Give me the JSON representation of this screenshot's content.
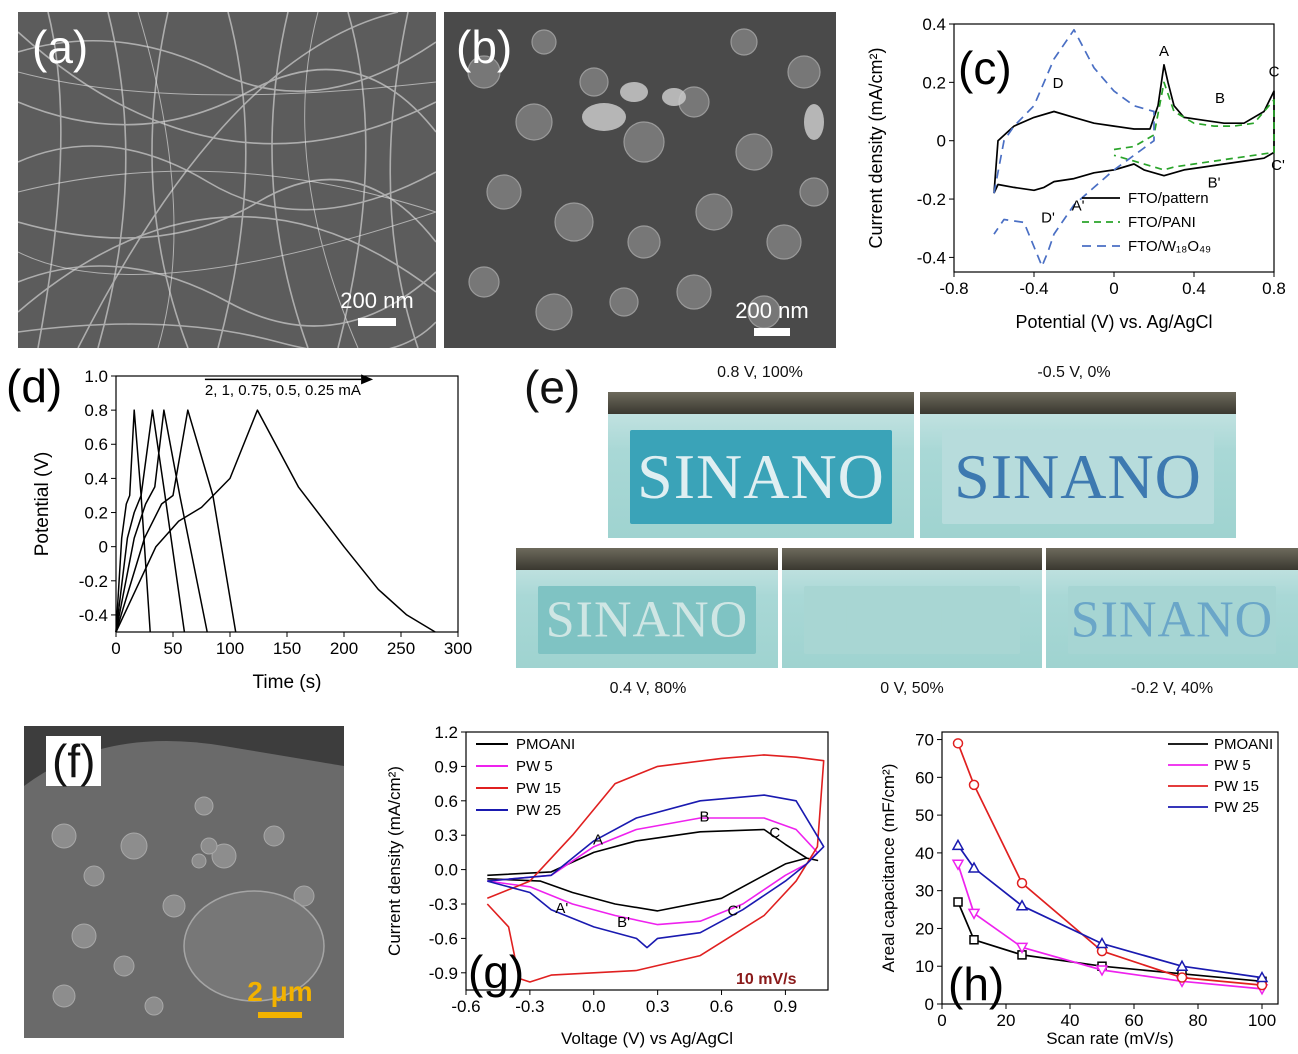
{
  "panels": {
    "a": {
      "label": "(a)",
      "scale": "200 nm"
    },
    "b": {
      "label": "(b)",
      "scale": "200 nm"
    },
    "c": {
      "label": "(c)"
    },
    "d": {
      "label": "(d)"
    },
    "e": {
      "label": "(e)"
    },
    "f": {
      "label": "(f)",
      "scale": "2 μm"
    },
    "g": {
      "label": "(g)"
    },
    "h": {
      "label": "(h)"
    }
  },
  "photos": {
    "word": "SINANO",
    "p1": {
      "caption": "0.8 V, 100%",
      "film": "#3aa3b8",
      "text": "#dfeff2"
    },
    "p2": {
      "caption": "-0.5 V, 0%",
      "film": "#b7dcdc",
      "text": "#3d79b0"
    },
    "p3": {
      "caption": "0.4 V, 80%",
      "film": "#7fc3c3",
      "text": "#cfe6e4"
    },
    "p4": {
      "caption": "0 V, 50%",
      "film": "#a8d6d3",
      "text": "#a8d6d3"
    },
    "p5": {
      "caption": "-0.2 V, 40%",
      "film": "#a6d5d3",
      "text": "#6aa6c8"
    }
  },
  "chart_data": [
    {
      "id": "c",
      "type": "line",
      "xlabel": "Potential (V) vs. Ag/AgCl",
      "ylabel": "Current density (mA/cm²)",
      "xlim": [
        -0.8,
        0.8
      ],
      "ylim": [
        -0.45,
        0.4
      ],
      "xticks": [
        "-0.8",
        "-0.4",
        "0",
        "0.4",
        "0.8"
      ],
      "yticks": [
        "-0.4",
        "-0.2",
        "0",
        "0.2",
        "0.4"
      ],
      "annotations": [
        "A",
        "B",
        "C",
        "D",
        "A'",
        "B'",
        "C'",
        "D'"
      ],
      "legend": "bottom-right",
      "series": [
        {
          "name": "FTO/pattern",
          "color": "#000000",
          "dash": "",
          "x": [
            -0.6,
            -0.58,
            -0.5,
            -0.4,
            -0.3,
            -0.2,
            -0.1,
            0.0,
            0.1,
            0.18,
            0.22,
            0.25,
            0.27,
            0.3,
            0.35,
            0.45,
            0.55,
            0.65,
            0.75,
            0.8,
            0.8,
            0.75,
            0.65,
            0.55,
            0.45,
            0.35,
            0.25,
            0.2,
            0.15,
            0.1,
            0.05,
            0.0,
            -0.1,
            -0.2,
            -0.3,
            -0.35,
            -0.4,
            -0.5,
            -0.58,
            -0.6
          ],
          "y": [
            -0.18,
            0.0,
            0.05,
            0.08,
            0.1,
            0.08,
            0.06,
            0.05,
            0.04,
            0.04,
            0.12,
            0.26,
            0.2,
            0.12,
            0.08,
            0.07,
            0.06,
            0.06,
            0.1,
            0.17,
            -0.04,
            -0.06,
            -0.07,
            -0.08,
            -0.09,
            -0.1,
            -0.12,
            -0.11,
            -0.1,
            -0.08,
            -0.09,
            -0.1,
            -0.11,
            -0.13,
            -0.14,
            -0.16,
            -0.17,
            -0.16,
            -0.15,
            -0.18
          ]
        },
        {
          "name": "FTO/PANI",
          "color": "#2aa42a",
          "dash": "7 5",
          "x": [
            0.0,
            0.1,
            0.2,
            0.25,
            0.3,
            0.4,
            0.5,
            0.6,
            0.7,
            0.8,
            0.8,
            0.7,
            0.6,
            0.5,
            0.4,
            0.3,
            0.25,
            0.2,
            0.1,
            0.0
          ],
          "y": [
            -0.03,
            -0.02,
            0.02,
            0.2,
            0.1,
            0.06,
            0.05,
            0.05,
            0.06,
            0.14,
            -0.04,
            -0.05,
            -0.06,
            -0.07,
            -0.08,
            -0.09,
            -0.1,
            -0.09,
            -0.07,
            -0.05
          ]
        },
        {
          "name": "FTO/W₁₈O₄₉",
          "color": "#4a6fc4",
          "dash": "9 6",
          "x": [
            -0.6,
            -0.55,
            -0.5,
            -0.4,
            -0.3,
            -0.2,
            -0.1,
            0.0,
            0.1,
            0.2,
            0.2,
            0.1,
            0.0,
            -0.1,
            -0.2,
            -0.3,
            -0.33,
            -0.36,
            -0.45,
            -0.55,
            -0.6
          ],
          "y": [
            -0.18,
            0.0,
            0.05,
            0.12,
            0.28,
            0.38,
            0.25,
            0.17,
            0.12,
            0.1,
            0.0,
            -0.05,
            -0.1,
            -0.16,
            -0.22,
            -0.32,
            -0.38,
            -0.43,
            -0.28,
            -0.27,
            -0.32
          ]
        }
      ]
    },
    {
      "id": "d",
      "type": "line",
      "xlabel": "Time (s)",
      "ylabel": "Potential (V)",
      "xlim": [
        0,
        300
      ],
      "ylim": [
        -0.5,
        1.0
      ],
      "xticks": [
        "0",
        "50",
        "100",
        "150",
        "200",
        "250",
        "300"
      ],
      "yticks": [
        "-0.4",
        "-0.2",
        "0",
        "0.2",
        "0.4",
        "0.6",
        "0.8",
        "1.0"
      ],
      "annotation": "2, 1, 0.75, 0.5, 0.25 mA",
      "series": [
        {
          "name": "2 mA",
          "x": [
            0,
            5,
            9,
            12,
            16,
            22,
            30
          ],
          "y": [
            -0.5,
            0.05,
            0.25,
            0.3,
            0.8,
            0.3,
            -0.5
          ]
        },
        {
          "name": "1 mA",
          "x": [
            0,
            10,
            16,
            22,
            32,
            43,
            60
          ],
          "y": [
            -0.5,
            0.05,
            0.2,
            0.3,
            0.8,
            0.3,
            -0.5
          ]
        },
        {
          "name": "0.75 mA",
          "x": [
            0,
            16,
            26,
            34,
            42,
            56,
            80
          ],
          "y": [
            -0.5,
            0.05,
            0.25,
            0.35,
            0.8,
            0.3,
            -0.5
          ]
        },
        {
          "name": "0.5 mA",
          "x": [
            0,
            25,
            40,
            50,
            63,
            85,
            105
          ],
          "y": [
            -0.5,
            0.05,
            0.25,
            0.3,
            0.8,
            0.3,
            -0.5
          ]
        },
        {
          "name": "0.25 mA",
          "x": [
            0,
            35,
            55,
            75,
            100,
            124,
            160,
            200,
            230,
            255,
            280
          ],
          "y": [
            -0.5,
            0.0,
            0.15,
            0.23,
            0.4,
            0.8,
            0.35,
            0.0,
            -0.25,
            -0.4,
            -0.5
          ]
        }
      ]
    },
    {
      "id": "g",
      "type": "line",
      "xlabel": "Voltage (V) vs Ag/AgCl",
      "ylabel": "Current density (mA/cm²)",
      "xlim": [
        -0.6,
        1.1
      ],
      "ylim": [
        -1.05,
        1.2
      ],
      "xticks": [
        "-0.6",
        "-0.3",
        "0.0",
        "0.3",
        "0.6",
        "0.9"
      ],
      "yticks": [
        "-0.9",
        "-0.6",
        "-0.3",
        "0.0",
        "0.3",
        "0.6",
        "0.9",
        "1.2"
      ],
      "annotation": "10 mV/s",
      "point_labels": [
        "A",
        "B",
        "C",
        "A'",
        "B'",
        "C'"
      ],
      "legend": "top-left",
      "series": [
        {
          "name": "PMOANI",
          "color": "#000000",
          "x": [
            -0.5,
            -0.2,
            0.0,
            0.2,
            0.5,
            0.8,
            0.9,
            1.0,
            1.05,
            1.0,
            0.9,
            0.8,
            0.6,
            0.3,
            0.1,
            -0.1,
            -0.25,
            -0.5
          ],
          "y": [
            -0.05,
            -0.02,
            0.15,
            0.25,
            0.33,
            0.35,
            0.22,
            0.1,
            0.08,
            0.1,
            0.05,
            -0.05,
            -0.25,
            -0.36,
            -0.3,
            -0.2,
            -0.1,
            -0.08
          ]
        },
        {
          "name": "PW 5",
          "color": "#ee22ee",
          "x": [
            -0.5,
            -0.2,
            0.0,
            0.2,
            0.5,
            0.8,
            0.95,
            1.05,
            1.0,
            0.9,
            0.7,
            0.5,
            0.3,
            0.1,
            -0.1,
            -0.3,
            -0.5
          ],
          "y": [
            -0.1,
            -0.05,
            0.2,
            0.35,
            0.45,
            0.45,
            0.35,
            0.15,
            0.05,
            -0.05,
            -0.3,
            -0.45,
            -0.48,
            -0.4,
            -0.3,
            -0.15,
            -0.1
          ]
        },
        {
          "name": "PW 15",
          "color": "#e02020",
          "x": [
            -0.5,
            -0.3,
            -0.1,
            0.1,
            0.3,
            0.6,
            0.8,
            0.95,
            1.08,
            1.05,
            0.95,
            0.8,
            0.5,
            0.2,
            0.0,
            -0.2,
            -0.3,
            -0.35,
            -0.4,
            -0.5
          ],
          "y": [
            -0.25,
            -0.1,
            0.3,
            0.75,
            0.9,
            0.97,
            1.0,
            0.98,
            0.95,
            0.2,
            -0.1,
            -0.4,
            -0.75,
            -0.88,
            -0.9,
            -0.92,
            -0.98,
            -0.95,
            -0.5,
            -0.3
          ]
        },
        {
          "name": "PW 25",
          "color": "#1a1ab0",
          "x": [
            -0.5,
            -0.2,
            0.0,
            0.2,
            0.5,
            0.8,
            0.95,
            1.08,
            1.0,
            0.9,
            0.7,
            0.5,
            0.3,
            0.25,
            0.2,
            0.0,
            -0.2,
            -0.3,
            -0.5
          ],
          "y": [
            -0.1,
            -0.05,
            0.25,
            0.45,
            0.6,
            0.65,
            0.6,
            0.2,
            0.05,
            -0.1,
            -0.35,
            -0.55,
            -0.6,
            -0.68,
            -0.6,
            -0.5,
            -0.35,
            -0.2,
            -0.1
          ]
        }
      ]
    },
    {
      "id": "h",
      "type": "line",
      "xlabel": "Scan rate (mV/s)",
      "ylabel": "Areal capacitance (mF/cm²)",
      "xlim": [
        0,
        105
      ],
      "ylim": [
        0,
        72
      ],
      "xticks": [
        "0",
        "20",
        "40",
        "60",
        "80",
        "100"
      ],
      "yticks": [
        "0",
        "10",
        "20",
        "30",
        "40",
        "50",
        "60",
        "70"
      ],
      "legend": "top-right",
      "x": [
        5,
        10,
        25,
        50,
        75,
        100
      ],
      "series": [
        {
          "name": "PMOANI",
          "color": "#000000",
          "marker": "square",
          "values": [
            27,
            17,
            13,
            10,
            8,
            6
          ]
        },
        {
          "name": "PW 5",
          "color": "#ee22ee",
          "marker": "triangle-down",
          "values": [
            37,
            24,
            15,
            9,
            6,
            4
          ]
        },
        {
          "name": "PW 15",
          "color": "#e02020",
          "marker": "circle",
          "values": [
            69,
            58,
            32,
            14,
            7,
            5
          ]
        },
        {
          "name": "PW 25",
          "color": "#1a1ab0",
          "marker": "triangle-up",
          "values": [
            42,
            36,
            26,
            16,
            10,
            7
          ]
        }
      ]
    }
  ]
}
